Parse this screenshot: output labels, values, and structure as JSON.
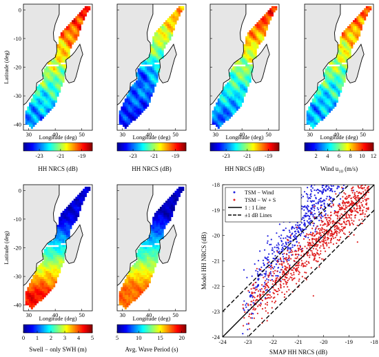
{
  "colors": {
    "land": "#e6e6e6",
    "coast": "#000000",
    "tsm_wind": "#1f1fe0",
    "tsm_ws": "#e01f1f",
    "colormap": [
      "#00008f",
      "#0000ff",
      "#0080ff",
      "#00ffff",
      "#80ff80",
      "#ffff00",
      "#ff8000",
      "#ff0000",
      "#800000"
    ]
  },
  "chart_data": [
    {
      "type": "heatmap",
      "panel": "a",
      "title": "",
      "xlabel": "Longitude (deg)",
      "ylabel": "Latitude (deg)",
      "xlim": [
        28,
        54
      ],
      "ylim": [
        -42,
        2
      ],
      "xticks": [
        "30",
        "40",
        "50"
      ],
      "yticks": [
        "0",
        "-10",
        "-20",
        "-30",
        "-40"
      ],
      "colorbar": {
        "label": "HH NRCS (dB)",
        "range": [
          -24.5,
          -18
        ],
        "ticks": [
          "-23",
          "-21",
          "-19"
        ]
      },
      "field": "nrcs_obs"
    },
    {
      "type": "heatmap",
      "panel": "b",
      "title": "",
      "xlabel": "Longitude (deg)",
      "ylabel": "",
      "xlim": [
        28,
        54
      ],
      "ylim": [
        -42,
        2
      ],
      "xticks": [
        "30",
        "40",
        "50"
      ],
      "yticks": [],
      "colorbar": {
        "label": "HH NRCS (dB)",
        "range": [
          -24.5,
          -18
        ],
        "ticks": [
          "-23",
          "-21",
          "-19"
        ]
      },
      "field": "nrcs_wind"
    },
    {
      "type": "heatmap",
      "panel": "c",
      "title": "",
      "xlabel": "Longitude (deg)",
      "ylabel": "",
      "xlim": [
        28,
        54
      ],
      "ylim": [
        -42,
        2
      ],
      "xticks": [
        "30",
        "40",
        "50"
      ],
      "yticks": [],
      "colorbar": {
        "label": "HH NRCS (dB)",
        "range": [
          -24.5,
          -18
        ],
        "ticks": [
          "-23",
          "-21",
          "-19"
        ]
      },
      "field": "nrcs_ws"
    },
    {
      "type": "heatmap",
      "panel": "d",
      "title": "",
      "xlabel": "Longitude (deg)",
      "ylabel": "",
      "xlim": [
        28,
        54
      ],
      "ylim": [
        -42,
        2
      ],
      "xticks": [
        "30",
        "40",
        "50"
      ],
      "yticks": [],
      "colorbar": {
        "label": "Wind u",
        "label_sub": "10",
        "label_tail": " (m/s)",
        "range": [
          0,
          12
        ],
        "ticks": [
          "2",
          "4",
          "6",
          "8",
          "10",
          "12"
        ]
      },
      "field": "wind"
    },
    {
      "type": "heatmap",
      "panel": "e",
      "title": "",
      "xlabel": "Longitude (deg)",
      "ylabel": "Latitude (deg)",
      "xlim": [
        28,
        54
      ],
      "ylim": [
        -42,
        2
      ],
      "xticks": [
        "30",
        "40",
        "50"
      ],
      "yticks": [
        "0",
        "-10",
        "-20",
        "-30",
        "-40"
      ],
      "colorbar": {
        "label": "Swell − only SWH (m)",
        "range": [
          0,
          5
        ],
        "ticks": [
          "0",
          "1",
          "2",
          "3",
          "4",
          "5"
        ]
      },
      "field": "swh"
    },
    {
      "type": "heatmap",
      "panel": "f",
      "title": "",
      "xlabel": "Longitude (deg)",
      "ylabel": "",
      "xlim": [
        28,
        54
      ],
      "ylim": [
        -42,
        2
      ],
      "xticks": [
        "30",
        "40",
        "50"
      ],
      "yticks": [],
      "colorbar": {
        "label": "Avg. Wave Period (s)",
        "range": [
          5,
          21
        ],
        "ticks": [
          "5",
          "10",
          "15",
          "20"
        ]
      },
      "field": "period"
    },
    {
      "type": "scatter",
      "panel": "g",
      "title": "",
      "xlabel": "SMAP HH NRCS (dB)",
      "ylabel": "Model HH NRCS (dB)",
      "xlim": [
        -24,
        -18
      ],
      "ylim": [
        -24,
        -18
      ],
      "xticks": [
        "-24",
        "-23",
        "-22",
        "-21",
        "-20",
        "-19",
        "-18"
      ],
      "yticks": [
        "-24",
        "-23",
        "-22",
        "-21",
        "-20",
        "-19",
        "-18"
      ],
      "grid": false,
      "legend": "top-left",
      "series": [
        {
          "name": "TSM − Wind",
          "marker": "dot",
          "color": "#1f1fe0",
          "fit_slope": 1.35,
          "fit_intercept": 8.7,
          "spread": 0.55,
          "n": 900
        },
        {
          "name": "TSM − W + S",
          "marker": "dot",
          "color": "#e01f1f",
          "fit_slope": 0.95,
          "fit_intercept": -1.0,
          "spread": 0.45,
          "n": 900
        }
      ],
      "lines": [
        {
          "name": "1 : 1 Line",
          "style": "solid",
          "offset": 0
        },
        {
          "name": "±1 dB Lines",
          "style": "dashed",
          "offsets": [
            1,
            -1
          ]
        }
      ]
    }
  ]
}
